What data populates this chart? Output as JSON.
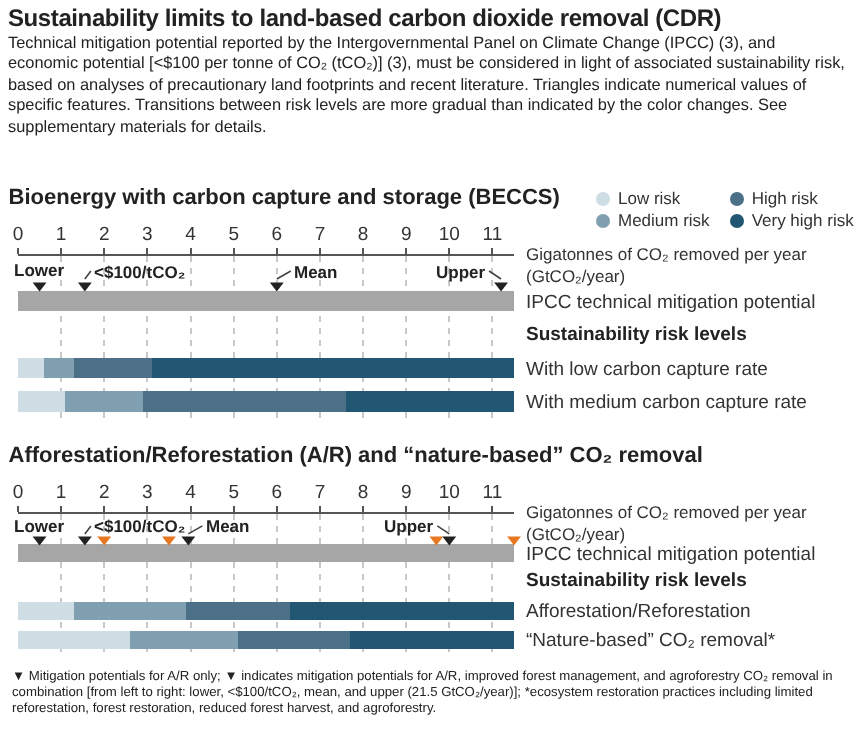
{
  "chart_data": [
    {
      "type": "other",
      "title": "Sustainability limits to land-based carbon dioxide removal (CDR)",
      "subtitle": "Technical mitigation potential reported by the Intergovernmental Panel on Climate Change (IPCC) (3), and economic potential [<$100 per tonne of CO₂ (tCO₂)] (3), must be considered in light of associated sustainability risk, based on analyses of precautionary land footprints and recent literature. Triangles indicate numerical values of specific features. Transitions between risk levels are more gradual than indicated by the color changes. See supplementary materials for details."
    },
    {
      "type": "bar",
      "orientation": "horizontal",
      "stacked": true,
      "title": "Bioenergy with carbon capture and storage (BECCS)",
      "xlabel": "Gigatonnes of CO₂ removed per year (GtCO₂/year)",
      "categories": [
        "IPCC technical mitigation potential",
        "With low carbon capture rate",
        "With medium carbon capture rate"
      ],
      "xlim": [
        0,
        11.5
      ],
      "xticks": [
        0,
        1,
        2,
        3,
        4,
        5,
        6,
        7,
        8,
        9,
        10,
        11
      ],
      "grid": "x",
      "legend": "top right",
      "series": [
        {
          "color": "#a6a6a6",
          "values": [
            11.5,
            null,
            null
          ]
        },
        {
          "name": "Low risk",
          "color": "#cfdde4",
          "values": [
            null,
            0.6,
            1.1
          ]
        },
        {
          "name": "Medium risk",
          "color": "#809fb0",
          "values": [
            null,
            0.7,
            1.8
          ]
        },
        {
          "name": "High risk",
          "color": "#4b7087",
          "values": [
            null,
            1.8,
            4.7
          ]
        },
        {
          "name": "Very high risk",
          "color": "#215772",
          "values": [
            null,
            8.4,
            3.9
          ]
        },
        {
          "type": "scatter",
          "marker": "triangle",
          "color": "#222222",
          "values": [
            0.5,
            1.55,
            6.0,
            11.2
          ],
          "x": [
            "IPCC technical mitigation potential",
            "IPCC technical mitigation potential",
            "IPCC technical mitigation potential",
            "IPCC technical mitigation potential"
          ]
        }
      ],
      "annotations": [
        "Sustainability risk levels",
        {
          "text": "Lower",
          "x": 0.5,
          "y": "IPCC technical mitigation potential"
        },
        {
          "text": "<$100/tCO₂",
          "x": 1.55,
          "y": "IPCC technical mitigation potential"
        },
        {
          "text": "Mean",
          "x": 6.0,
          "y": "IPCC technical mitigation potential"
        },
        {
          "text": "Upper",
          "x": 11.2,
          "y": "IPCC technical mitigation potential"
        }
      ]
    },
    {
      "type": "bar",
      "orientation": "horizontal",
      "stacked": true,
      "title": "Afforestation/Reforestation (A/R) and “nature-based” CO₂ removal",
      "xlabel": "Gigatonnes of CO₂ removed per year (GtCO₂/year)",
      "categories": [
        "IPCC technical mitigation potential",
        "Afforestation/Reforestation",
        "“Nature-based” CO₂ removal*"
      ],
      "xlim": [
        0,
        11.5
      ],
      "xticks": [
        0,
        1,
        2,
        3,
        4,
        5,
        6,
        7,
        8,
        9,
        10,
        11
      ],
      "grid": "x",
      "series": [
        {
          "color": "#a6a6a6",
          "values": [
            11.5,
            null,
            null
          ]
        },
        {
          "color": "#cfdde4",
          "values": [
            null,
            1.3,
            2.6
          ]
        },
        {
          "color": "#809fb0",
          "values": [
            null,
            2.6,
            2.5
          ]
        },
        {
          "color": "#4b7087",
          "values": [
            null,
            2.4,
            2.6
          ]
        },
        {
          "color": "#215772",
          "values": [
            null,
            5.2,
            3.8
          ]
        },
        {
          "type": "scatter",
          "marker": "triangle",
          "color": "#222222",
          "values": [
            0.5,
            1.55,
            3.95,
            10.0
          ],
          "x": [
            "IPCC technical mitigation potential",
            "IPCC technical mitigation potential",
            "IPCC technical mitigation potential",
            "IPCC technical mitigation potential"
          ]
        },
        {
          "type": "scatter",
          "marker": "triangle",
          "color": "#e87722",
          "values": [
            2.0,
            3.5,
            9.7,
            11.5
          ],
          "x": [
            "IPCC technical mitigation potential",
            "IPCC technical mitigation potential",
            "IPCC technical mitigation potential",
            "IPCC technical mitigation potential"
          ]
        }
      ],
      "annotations": [
        "Sustainability risk levels",
        {
          "text": "Lower",
          "x": 0.5,
          "y": "IPCC technical mitigation potential"
        },
        {
          "text": "<$100/tCO₂",
          "x": 1.55,
          "y": "IPCC technical mitigation potential"
        },
        {
          "text": "Mean",
          "x": 3.95,
          "y": "IPCC technical mitigation potential"
        },
        {
          "text": "Upper",
          "x": 10.0,
          "y": "IPCC technical mitigation potential"
        },
        "▼ Mitigation potentials for A/R only; ▼ indicates mitigation potentials for A/R, improved forest management, and agroforestry CO₂ removal in combination [from left to right: lower, <$100/tCO₂, mean, and upper (21.5 GtCO₂/year)]; *ecosystem restoration practices including limited reforestation, forest restoration, reduced forest harvest, and agroforestry."
      ]
    }
  ]
}
